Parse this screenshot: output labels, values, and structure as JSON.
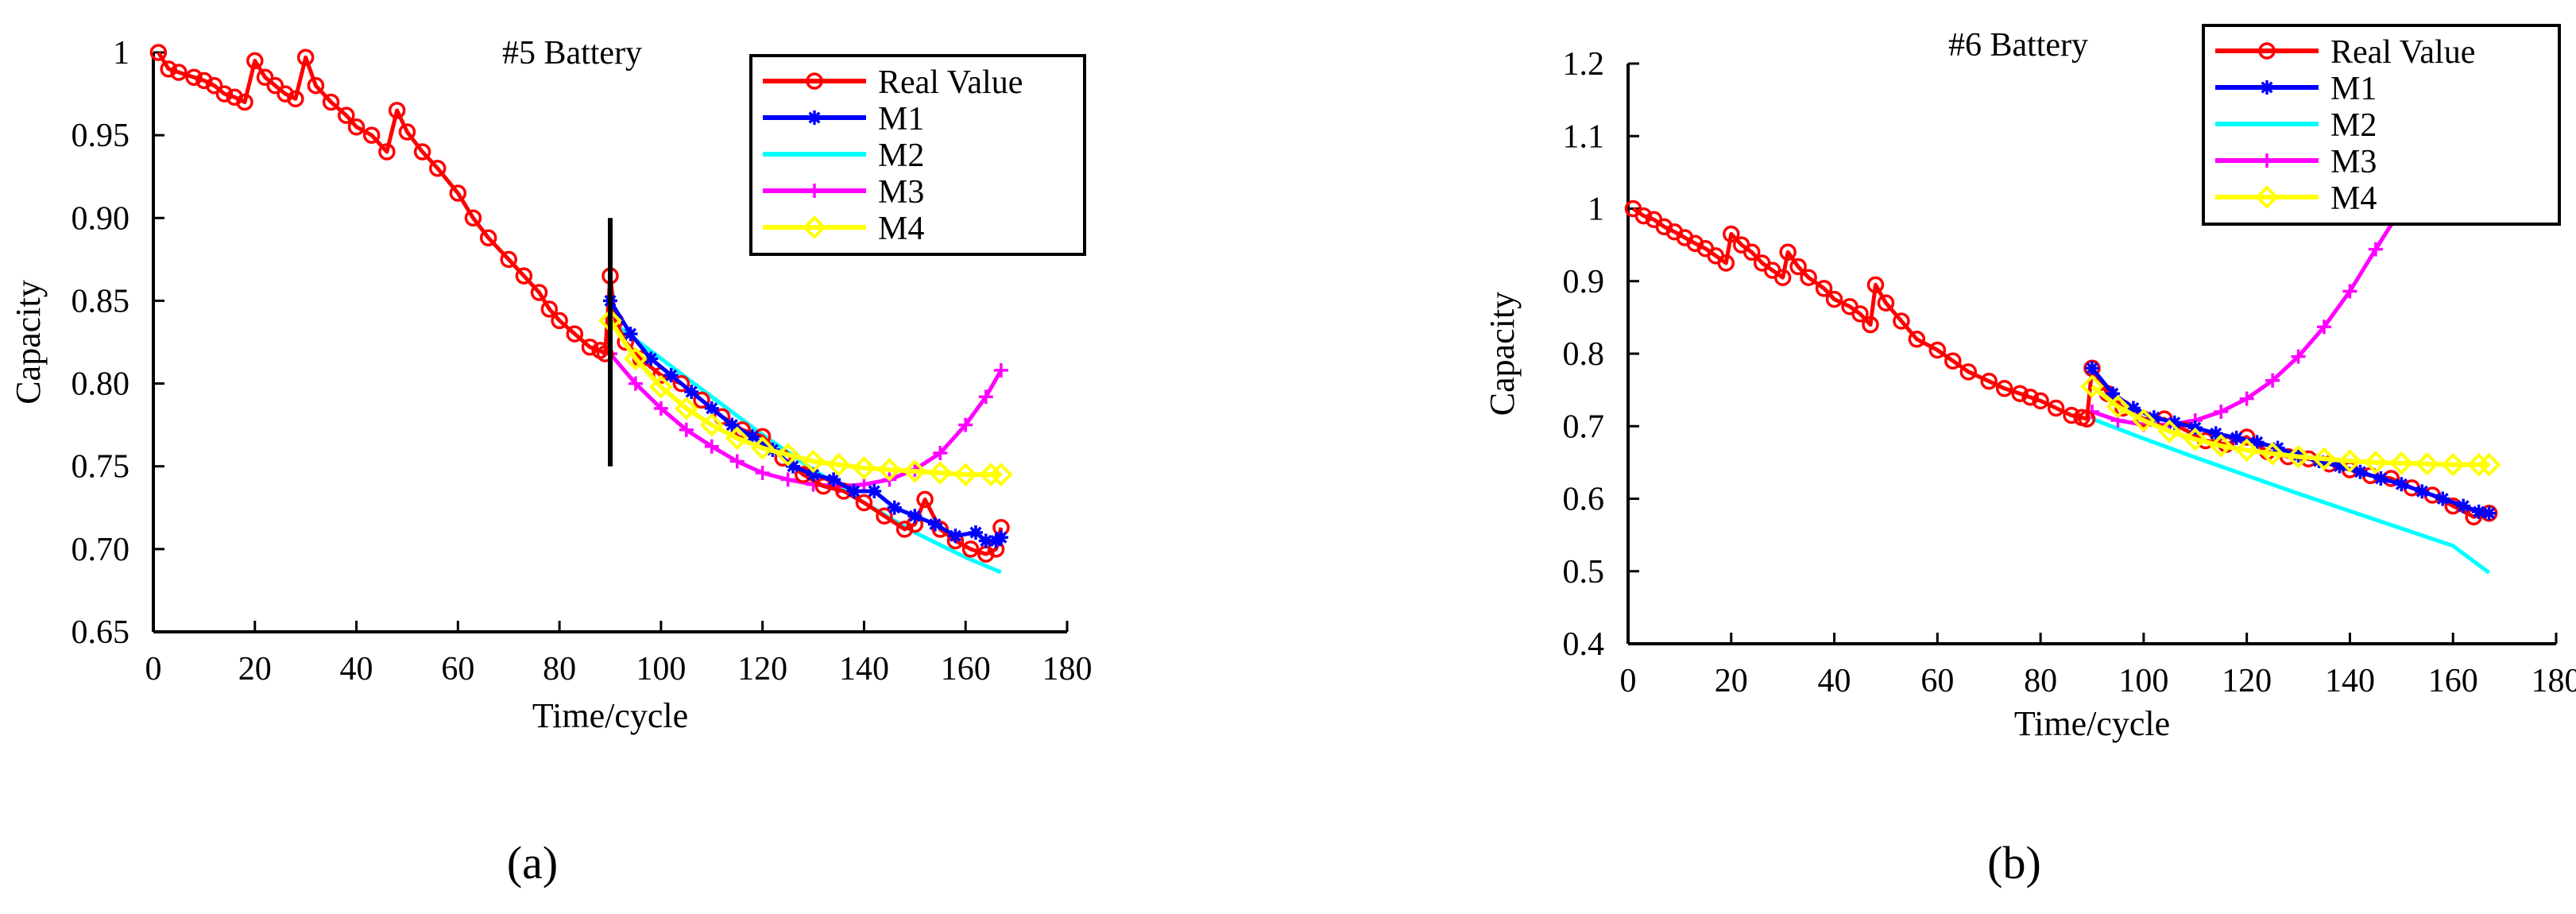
{
  "figure": {
    "panel_a_label": "(a)",
    "panel_b_label": "(b)"
  },
  "chart_data": [
    {
      "type": "line",
      "title": "#5 Battery",
      "xlabel": "Time/cycle",
      "ylabel": "Capacity",
      "xlim": [
        0,
        180
      ],
      "ylim": [
        0.65,
        1.0
      ],
      "xticks": [
        0,
        20,
        40,
        60,
        80,
        100,
        120,
        140,
        160,
        180
      ],
      "xtick_labels": [
        "0",
        "20",
        "40",
        "60",
        "80",
        "100",
        "120",
        "140",
        "160",
        "180"
      ],
      "yticks": [
        0.65,
        0.7,
        0.75,
        0.8,
        0.85,
        0.9,
        0.95,
        1.0
      ],
      "ytick_labels": [
        "0.65",
        "0.70",
        "0.75",
        "0.80",
        "0.85",
        "0.90",
        "0.95",
        "1"
      ],
      "grid": false,
      "legend_position": "top-right",
      "annotation": {
        "type": "vertical-line",
        "x": 90,
        "y_range": [
          0.75,
          0.9
        ],
        "color": "#000000"
      },
      "series": [
        {
          "name": "Real Value",
          "color": "#ff0000",
          "marker": "o",
          "x": [
            1,
            3,
            5,
            8,
            10,
            12,
            14,
            16,
            18,
            20,
            22,
            24,
            26,
            28,
            30,
            32,
            35,
            38,
            40,
            43,
            46,
            48,
            50,
            53,
            56,
            60,
            63,
            66,
            70,
            73,
            76,
            78,
            80,
            83,
            86,
            88,
            89,
            90,
            91,
            93,
            96,
            100,
            104,
            108,
            112,
            116,
            120,
            124,
            128,
            132,
            136,
            140,
            144,
            148,
            150,
            152,
            155,
            158,
            161,
            164,
            166,
            167
          ],
          "y": [
            1.0,
            0.99,
            0.988,
            0.985,
            0.983,
            0.98,
            0.975,
            0.973,
            0.97,
            0.995,
            0.985,
            0.98,
            0.975,
            0.972,
            0.997,
            0.98,
            0.97,
            0.962,
            0.955,
            0.95,
            0.94,
            0.965,
            0.952,
            0.94,
            0.93,
            0.915,
            0.9,
            0.888,
            0.875,
            0.865,
            0.855,
            0.845,
            0.838,
            0.83,
            0.822,
            0.82,
            0.818,
            0.865,
            0.838,
            0.825,
            0.815,
            0.805,
            0.8,
            0.79,
            0.78,
            0.772,
            0.768,
            0.755,
            0.745,
            0.738,
            0.735,
            0.728,
            0.72,
            0.712,
            0.715,
            0.73,
            0.712,
            0.705,
            0.7,
            0.697,
            0.7,
            0.713
          ]
        },
        {
          "name": "M1",
          "color": "#0000ff",
          "marker": "*",
          "x": [
            90,
            94,
            98,
            102,
            106,
            110,
            114,
            118,
            122,
            126,
            130,
            134,
            138,
            142,
            146,
            150,
            154,
            158,
            162,
            164,
            166,
            167
          ],
          "y": [
            0.85,
            0.83,
            0.815,
            0.805,
            0.795,
            0.785,
            0.775,
            0.768,
            0.76,
            0.75,
            0.745,
            0.742,
            0.735,
            0.735,
            0.725,
            0.72,
            0.715,
            0.708,
            0.71,
            0.705,
            0.705,
            0.707
          ]
        },
        {
          "name": "M2",
          "color": "#00ffff",
          "marker": "none",
          "x": [
            90,
            100,
            110,
            120,
            130,
            140,
            150,
            160,
            167
          ],
          "y": [
            0.838,
            0.815,
            0.792,
            0.769,
            0.748,
            0.728,
            0.71,
            0.695,
            0.686
          ]
        },
        {
          "name": "M3",
          "color": "#ff00ff",
          "marker": "+",
          "x": [
            90,
            95,
            100,
            105,
            110,
            115,
            120,
            125,
            130,
            135,
            140,
            145,
            150,
            155,
            160,
            164,
            167
          ],
          "y": [
            0.818,
            0.8,
            0.785,
            0.772,
            0.762,
            0.753,
            0.746,
            0.742,
            0.739,
            0.738,
            0.739,
            0.742,
            0.748,
            0.758,
            0.775,
            0.792,
            0.808
          ]
        },
        {
          "name": "M4",
          "color": "#ffff00",
          "marker": "diamond",
          "x": [
            90,
            95,
            100,
            105,
            110,
            115,
            120,
            125,
            130,
            135,
            140,
            145,
            150,
            155,
            160,
            165,
            167
          ],
          "y": [
            0.838,
            0.815,
            0.798,
            0.785,
            0.775,
            0.767,
            0.761,
            0.757,
            0.753,
            0.751,
            0.749,
            0.748,
            0.747,
            0.746,
            0.745,
            0.745,
            0.745
          ]
        }
      ]
    },
    {
      "type": "line",
      "title": "#6 Battery",
      "xlabel": "Time/cycle",
      "ylabel": "Capacity",
      "xlim": [
        0,
        180
      ],
      "ylim": [
        0.4,
        1.2
      ],
      "xticks": [
        0,
        20,
        40,
        60,
        80,
        100,
        120,
        140,
        160,
        180
      ],
      "xtick_labels": [
        "0",
        "20",
        "40",
        "60",
        "80",
        "100",
        "120",
        "140",
        "160",
        "180"
      ],
      "yticks": [
        0.4,
        0.5,
        0.6,
        0.7,
        0.8,
        0.9,
        1.0,
        1.1,
        1.2
      ],
      "ytick_labels": [
        "0.4",
        "0.5",
        "0.6",
        "0.7",
        "0.8",
        "0.9",
        "1",
        "1.1",
        "1.2"
      ],
      "grid": false,
      "legend_position": "top-right",
      "series": [
        {
          "name": "Real Value",
          "color": "#ff0000",
          "marker": "o",
          "x": [
            1,
            3,
            5,
            7,
            9,
            11,
            13,
            15,
            17,
            19,
            20,
            22,
            24,
            26,
            28,
            30,
            31,
            33,
            35,
            38,
            40,
            43,
            45,
            47,
            48,
            50,
            53,
            56,
            60,
            63,
            66,
            70,
            73,
            76,
            78,
            80,
            83,
            86,
            88,
            89,
            90,
            93,
            96,
            100,
            104,
            108,
            112,
            116,
            120,
            124,
            128,
            132,
            136,
            140,
            144,
            148,
            152,
            156,
            160,
            164,
            167
          ],
          "y": [
            1.0,
            0.99,
            0.985,
            0.975,
            0.968,
            0.96,
            0.952,
            0.945,
            0.935,
            0.925,
            0.965,
            0.95,
            0.94,
            0.925,
            0.915,
            0.905,
            0.94,
            0.92,
            0.905,
            0.89,
            0.875,
            0.865,
            0.855,
            0.84,
            0.895,
            0.87,
            0.845,
            0.82,
            0.805,
            0.79,
            0.775,
            0.762,
            0.752,
            0.745,
            0.74,
            0.735,
            0.725,
            0.715,
            0.712,
            0.71,
            0.78,
            0.745,
            0.725,
            0.71,
            0.71,
            0.695,
            0.68,
            0.675,
            0.685,
            0.665,
            0.658,
            0.655,
            0.648,
            0.64,
            0.632,
            0.628,
            0.615,
            0.605,
            0.59,
            0.575,
            0.58
          ]
        },
        {
          "name": "M1",
          "color": "#0000ff",
          "marker": "*",
          "x": [
            90,
            94,
            98,
            102,
            106,
            110,
            114,
            118,
            122,
            126,
            130,
            134,
            138,
            142,
            146,
            150,
            154,
            158,
            162,
            165,
            167
          ],
          "y": [
            0.78,
            0.745,
            0.725,
            0.712,
            0.705,
            0.698,
            0.69,
            0.684,
            0.678,
            0.67,
            0.66,
            0.652,
            0.645,
            0.637,
            0.628,
            0.62,
            0.61,
            0.6,
            0.59,
            0.582,
            0.58
          ]
        },
        {
          "name": "M2",
          "color": "#00ffff",
          "marker": "none",
          "x": [
            90,
            100,
            110,
            120,
            130,
            140,
            150,
            160,
            167
          ],
          "y": [
            0.71,
            0.683,
            0.657,
            0.632,
            0.607,
            0.583,
            0.559,
            0.535,
            0.498
          ]
        },
        {
          "name": "M3",
          "color": "#ff00ff",
          "marker": "+",
          "x": [
            90,
            95,
            100,
            105,
            110,
            115,
            120,
            125,
            130,
            135,
            140,
            145,
            150,
            155,
            160,
            164,
            167
          ],
          "y": [
            0.72,
            0.708,
            0.702,
            0.702,
            0.708,
            0.72,
            0.738,
            0.763,
            0.796,
            0.837,
            0.886,
            0.944,
            1.0,
            1.05,
            1.1,
            1.14,
            1.16
          ]
        },
        {
          "name": "M4",
          "color": "#ffff00",
          "marker": "diamond",
          "x": [
            90,
            95,
            100,
            105,
            110,
            115,
            120,
            125,
            130,
            135,
            140,
            145,
            150,
            155,
            160,
            165,
            167
          ],
          "y": [
            0.755,
            0.727,
            0.708,
            0.693,
            0.682,
            0.673,
            0.667,
            0.662,
            0.658,
            0.655,
            0.652,
            0.65,
            0.649,
            0.648,
            0.647,
            0.647,
            0.647
          ]
        }
      ]
    }
  ]
}
